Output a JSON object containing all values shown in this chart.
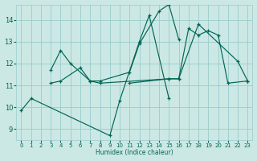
{
  "xlabel": "Humidex (Indice chaleur)",
  "bg_color": "#cce8e4",
  "line_color": "#006655",
  "grid_color": "#99cccc",
  "xlim": [
    -0.5,
    23.5
  ],
  "ylim": [
    8.5,
    14.7
  ],
  "yticks": [
    9,
    10,
    11,
    12,
    13,
    14
  ],
  "xticks": [
    0,
    1,
    2,
    3,
    4,
    5,
    6,
    7,
    8,
    9,
    10,
    11,
    12,
    13,
    14,
    15,
    16,
    17,
    18,
    19,
    20,
    21,
    22,
    23
  ],
  "series": [
    {
      "comment": "zigzag line: 0,1 then 9,10,12,13,15",
      "x": [
        0,
        1,
        9,
        10,
        12,
        13,
        15
      ],
      "y": [
        9.85,
        10.4,
        8.7,
        10.3,
        13.0,
        14.2,
        10.4
      ]
    },
    {
      "comment": "line: 3,4,5 and 7,8 and 11,12 and 14,15,16",
      "x": [
        3,
        4,
        5,
        7,
        8,
        11,
        12,
        14,
        15,
        16
      ],
      "y": [
        11.7,
        12.6,
        12.0,
        11.2,
        11.2,
        11.6,
        12.9,
        14.4,
        14.7,
        13.1
      ]
    },
    {
      "comment": "long line right side: 11,15,16,17,18,19,20,21,23",
      "x": [
        11,
        15,
        16,
        17,
        18,
        19,
        20,
        21,
        23
      ],
      "y": [
        11.1,
        11.3,
        11.3,
        13.6,
        13.3,
        13.5,
        13.3,
        11.1,
        11.2
      ]
    },
    {
      "comment": "diagonal line: 3,4,6,7,8 and 15,16 and 18,22,23",
      "x": [
        3,
        4,
        6,
        7,
        8,
        15,
        16,
        18,
        22,
        23
      ],
      "y": [
        11.1,
        11.2,
        11.8,
        11.2,
        11.1,
        11.3,
        11.3,
        13.8,
        12.1,
        11.2
      ]
    }
  ]
}
